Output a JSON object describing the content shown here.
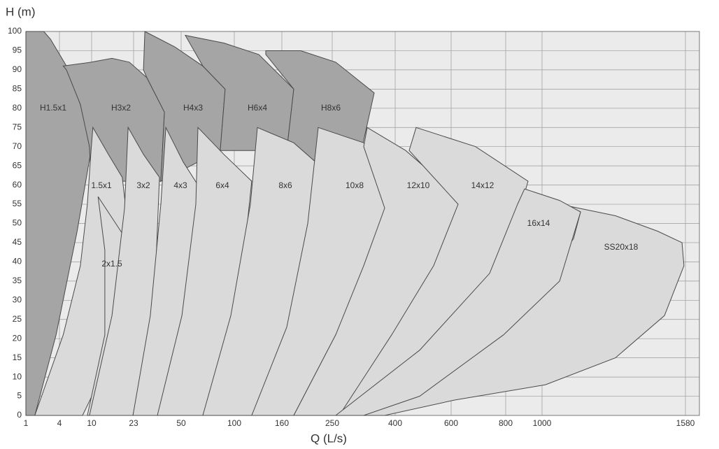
{
  "chart_data": {
    "type": "region",
    "y_label": "H (m)",
    "x_label": "Q (L/s)",
    "xlim": [
      1,
      1580
    ],
    "ylim": [
      0,
      100
    ],
    "xticks": [
      1,
      4,
      10,
      23,
      50,
      100,
      160,
      250,
      400,
      600,
      800,
      1000,
      1580
    ],
    "yticks": [
      0,
      5,
      10,
      15,
      20,
      25,
      30,
      35,
      40,
      45,
      50,
      55,
      60,
      65,
      70,
      75,
      80,
      85,
      90,
      95,
      100
    ],
    "grid": true,
    "series": [
      {
        "name": "H1.5x1",
        "color": "#a5a5a5",
        "q": [
          1,
          2.6,
          3.2,
          5.3,
          7.9,
          9.9,
          7.3,
          3.7,
          1.8,
          1
        ],
        "h": [
          100,
          100,
          98,
          91,
          81,
          69,
          48,
          21,
          0,
          0
        ]
      },
      {
        "name": "H3x2",
        "color": "#a5a5a5",
        "q": [
          4.7,
          9.9,
          16.3,
          21.7,
          30.5,
          40.5,
          38.5,
          9.9,
          9.6,
          7.9,
          5.3
        ],
        "h": [
          91,
          92,
          93,
          92,
          88,
          79,
          61,
          61,
          70,
          81,
          90
        ]
      },
      {
        "name": "H4x3",
        "color": "#a5a5a5",
        "q": [
          29.4,
          46.4,
          70.4,
          91.4,
          86.8,
          38.5,
          40.5,
          30.5,
          28.6
        ],
        "h": [
          100,
          96,
          91,
          85,
          69,
          61,
          79,
          88,
          90
        ]
      },
      {
        "name": "H6x4",
        "color": "#a5a5a5",
        "q": [
          53.9,
          90.1,
          130.9,
          181.3,
          168.8,
          86.8,
          91.4,
          70.4
        ],
        "h": [
          99,
          97,
          94,
          85,
          69,
          69,
          85,
          91
        ]
      },
      {
        "name": "H8x6",
        "color": "#a5a5a5",
        "q": [
          139.7,
          193.8,
          258.3,
          350,
          321.7,
          206.3,
          168.8,
          181.3,
          139.7
        ],
        "h": [
          95,
          95,
          92,
          84,
          70,
          66,
          69,
          85,
          94
        ]
      },
      {
        "name": "1.5x1",
        "color": "#dadada",
        "q": [
          10.4,
          15.2,
          19.5,
          20.6,
          20.6,
          18.9,
          14.1,
          8.3,
          1.8,
          4.7,
          7.9,
          9.2,
          9.9
        ],
        "h": [
          75,
          68,
          62,
          54,
          44,
          28,
          12,
          0,
          0,
          21,
          39,
          55,
          69
        ]
      },
      {
        "name": "2x1.5",
        "color": "#dadada",
        "q": [
          12,
          20.6,
          20,
          16.9,
          13.7,
          9.2,
          14.1,
          14.1
        ],
        "h": [
          57,
          46,
          30,
          12,
          0,
          0,
          21,
          43
        ]
      },
      {
        "name": "3x2",
        "color": "#dadada",
        "q": [
          21.3,
          28.6,
          37.7,
          35.3,
          28.6,
          22.8,
          9.6,
          16.3,
          20.2
        ],
        "h": [
          75,
          68,
          62,
          35,
          13,
          0,
          0,
          26,
          54
        ]
      },
      {
        "name": "4x3",
        "color": "#dadada",
        "q": [
          41.3,
          52,
          70.4,
          67.1,
          57.2,
          48.4,
          22.8,
          32.5,
          38.5
        ],
        "h": [
          75,
          66,
          58,
          35,
          13,
          0,
          0,
          26,
          55
        ]
      },
      {
        "name": "6x4",
        "color": "#dadada",
        "q": [
          65.8,
          90.1,
          122,
          108.8,
          90.1,
          70.4,
          36.5,
          50.7,
          63.8
        ],
        "h": [
          75,
          68,
          61,
          35,
          17,
          0,
          0,
          26,
          55
        ]
      },
      {
        "name": "8x6",
        "color": "#dadada",
        "q": [
          129.1,
          181.3,
          243.8,
          218.8,
          168.8,
          122,
          70.4,
          96.7,
          120.3
        ],
        "h": [
          75,
          71,
          63,
          41,
          21,
          0,
          0,
          26,
          55
        ]
      },
      {
        "name": "10x8",
        "color": "#dadada",
        "q": [
          225,
          325,
          417.5,
          358.3,
          258.3,
          181.3,
          122,
          168.8,
          206.3
        ],
        "h": [
          75,
          71,
          65,
          43,
          21,
          0,
          0,
          23,
          50
        ]
      },
      {
        "name": "12x10",
        "color": "#dadada",
        "q": [
          333.3,
          437.5,
          643.6,
          562.5,
          412.5,
          266.7,
          181.3,
          258.3,
          325,
          375,
          325
        ],
        "h": [
          75,
          69,
          56,
          39,
          21,
          0,
          0,
          21,
          39,
          54,
          70
        ]
      },
      {
        "name": "14x12",
        "color": "#dadada",
        "q": [
          475,
          689.7,
          923.1,
          792.3,
          587.5,
          358.3,
          266.7,
          391.7,
          537.5,
          625.6,
          450
        ],
        "h": [
          75,
          70,
          61,
          39,
          21,
          0,
          0,
          21,
          39,
          55,
          69
        ]
      },
      {
        "name": "SS20x18",
        "color": "#dadada",
        "q": [
          1071,
          1297,
          1467,
          1566,
          1574,
          1495,
          1297,
          1014,
          612.8,
          375,
          325,
          612.8,
          942.3,
          1127,
          1156
        ],
        "h": [
          55,
          52,
          48,
          45,
          39,
          26,
          15,
          8,
          4,
          0,
          0,
          13,
          32,
          46,
          53
        ]
      },
      {
        "name": "16x14",
        "color": "#dadada",
        "q": [
          903.8,
          1071,
          1156,
          1071,
          792.3,
          487.5,
          325,
          258.3,
          487.5,
          741,
          865.4
        ],
        "h": [
          59,
          56,
          53,
          35,
          21,
          5,
          0,
          0,
          17,
          37,
          55
        ]
      }
    ]
  }
}
